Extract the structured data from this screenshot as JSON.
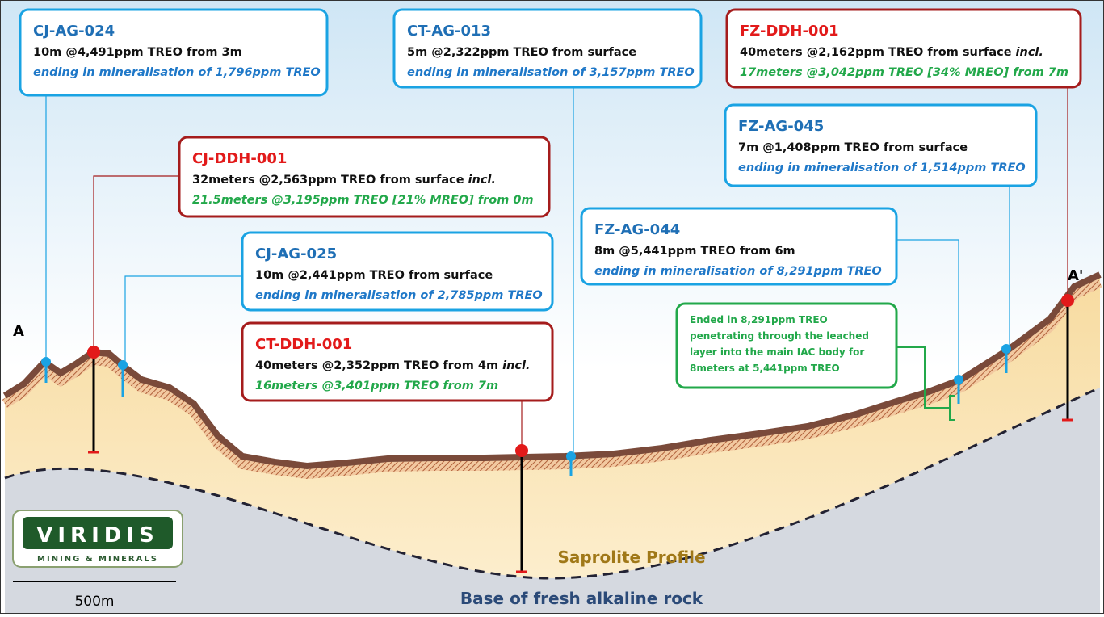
{
  "section": {
    "start_label": "A",
    "end_label": "A'"
  },
  "callouts": [
    {
      "title": "CJ-AG-024",
      "detail": "10m @4,491ppm TREO from 3m",
      "ending": "ending in mineralisation of 1,796ppm TREO"
    },
    {
      "title": "CT-AG-013",
      "detail": "5m @2,322ppm TREO from surface",
      "ending": "ending in mineralisation of 3,157ppm TREO"
    },
    {
      "title": "FZ-DDH-001",
      "detail": "40meters @2,162ppm TREO from surface",
      "detail_emph": "incl.",
      "ending": "17meters @3,042ppm TREO [34% MREO] from 7m"
    },
    {
      "title": "FZ-AG-045",
      "detail": "7m @1,408ppm TREO from surface",
      "ending": "ending in mineralisation of 1,514ppm TREO"
    },
    {
      "title": "CJ-DDH-001",
      "detail": "32meters @2,563ppm TREO from surface",
      "detail_emph": "incl.",
      "ending": "21.5meters @3,195ppm TREO [21% MREO] from 0m"
    },
    {
      "title": "FZ-AG-044",
      "detail": "8m @5,441ppm TREO from 6m",
      "ending": "ending in mineralisation of 8,291ppm TREO"
    },
    {
      "title": "CJ-AG-025",
      "detail": "10m @2,441ppm TREO from surface",
      "ending": "ending in mineralisation of 2,785ppm TREO"
    },
    {
      "title": "CT-DDH-001",
      "detail": "40meters @2,352ppm TREO from 4m",
      "detail_emph": "incl.",
      "ending": "16meters @3,401ppm TREO from 7m"
    }
  ],
  "note": {
    "lines": [
      "Ended in 8,291ppm TREO",
      "penetrating through the leached",
      "layer into the main IAC body for",
      "8meters at 5,441ppm TREO"
    ]
  },
  "labels": {
    "saprolite": "Saprolite Profile",
    "base": "Base of fresh alkaline rock"
  },
  "scale_bar": "500m",
  "logo": {
    "name": "VIRIDIS",
    "tagline": "MINING & MINERALS"
  }
}
